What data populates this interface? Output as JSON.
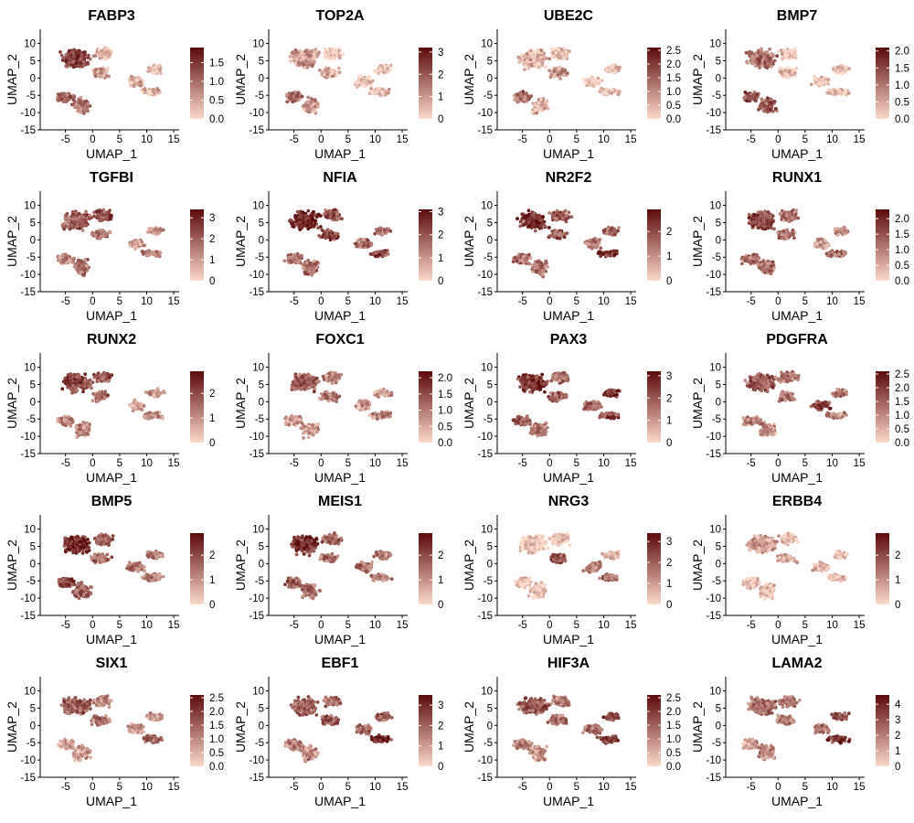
{
  "axes": {
    "xlabel": "UMAP_1",
    "ylabel": "UMAP_2",
    "xticks": [
      -5,
      0,
      5,
      10,
      15
    ],
    "yticks": [
      10,
      5,
      0,
      -5,
      -10,
      -15
    ],
    "xlim": [
      -9,
      16
    ],
    "ylim": [
      -15,
      12
    ]
  },
  "colors": {
    "low": "#fcd9c8",
    "high": "#5b0a0a",
    "background": "#ffffff",
    "axis": "#000000"
  },
  "chart_data": [
    {
      "type": "scatter",
      "title": "FABP3",
      "legend_ticks": [
        "0.0",
        "0.5",
        "1.0",
        "1.5"
      ],
      "colorbar_range": [
        0,
        1.9
      ]
    },
    {
      "type": "scatter",
      "title": "TOP2A",
      "legend_ticks": [
        "0",
        "1",
        "2",
        "3"
      ],
      "colorbar_range": [
        0,
        3.2
      ]
    },
    {
      "type": "scatter",
      "title": "UBE2C",
      "legend_ticks": [
        "0.0",
        "0.5",
        "1.0",
        "1.5",
        "2.0",
        "2.5"
      ],
      "colorbar_range": [
        0,
        2.6
      ]
    },
    {
      "type": "scatter",
      "title": "BMP7",
      "legend_ticks": [
        "0.0",
        "0.5",
        "1.0",
        "1.5",
        "2.0"
      ],
      "colorbar_range": [
        0,
        2.1
      ]
    },
    {
      "type": "scatter",
      "title": "TGFBI",
      "legend_ticks": [
        "0",
        "1",
        "2",
        "3"
      ],
      "colorbar_range": [
        0,
        3.4
      ]
    },
    {
      "type": "scatter",
      "title": "NFIA",
      "legend_ticks": [
        "0",
        "1",
        "2",
        "3"
      ],
      "colorbar_range": [
        0,
        3.1
      ]
    },
    {
      "type": "scatter",
      "title": "NR2F2",
      "legend_ticks": [
        "0",
        "1",
        "2"
      ],
      "colorbar_range": [
        0,
        2.9
      ]
    },
    {
      "type": "scatter",
      "title": "RUNX1",
      "legend_ticks": [
        "0.0",
        "0.5",
        "1.0",
        "1.5",
        "2.0"
      ],
      "colorbar_range": [
        0,
        2.3
      ]
    },
    {
      "type": "scatter",
      "title": "RUNX2",
      "legend_ticks": [
        "0",
        "1",
        "2"
      ],
      "colorbar_range": [
        0,
        2.9
      ]
    },
    {
      "type": "scatter",
      "title": "FOXC1",
      "legend_ticks": [
        "0.0",
        "0.5",
        "1.0",
        "1.5",
        "2.0"
      ],
      "colorbar_range": [
        0,
        2.2
      ]
    },
    {
      "type": "scatter",
      "title": "PAX3",
      "legend_ticks": [
        "0",
        "1",
        "2",
        "3"
      ],
      "colorbar_range": [
        0,
        3.2
      ]
    },
    {
      "type": "scatter",
      "title": "PDGFRA",
      "legend_ticks": [
        "0.0",
        "0.5",
        "1.0",
        "1.5",
        "2.0",
        "2.5"
      ],
      "colorbar_range": [
        0,
        2.6
      ]
    },
    {
      "type": "scatter",
      "title": "BMP5",
      "legend_ticks": [
        "0",
        "1",
        "2"
      ],
      "colorbar_range": [
        0,
        2.9
      ]
    },
    {
      "type": "scatter",
      "title": "MEIS1",
      "legend_ticks": [
        "0",
        "1",
        "2"
      ],
      "colorbar_range": [
        0,
        2.9
      ]
    },
    {
      "type": "scatter",
      "title": "NRG3",
      "legend_ticks": [
        "0",
        "1",
        "2",
        "3"
      ],
      "colorbar_range": [
        0,
        3.4
      ]
    },
    {
      "type": "scatter",
      "title": "ERBB4",
      "legend_ticks": [
        "0",
        "1",
        "2"
      ],
      "colorbar_range": [
        0,
        2.9
      ]
    },
    {
      "type": "scatter",
      "title": "SIX1",
      "legend_ticks": [
        "0.0",
        "0.5",
        "1.0",
        "1.5",
        "2.0",
        "2.5"
      ],
      "colorbar_range": [
        0,
        2.6
      ]
    },
    {
      "type": "scatter",
      "title": "EBF1",
      "legend_ticks": [
        "0",
        "1",
        "2",
        "3"
      ],
      "colorbar_range": [
        0,
        3.5
      ]
    },
    {
      "type": "scatter",
      "title": "HIF3A",
      "legend_ticks": [
        "0.0",
        "0.5",
        "1.0",
        "1.5",
        "2.0",
        "2.5"
      ],
      "colorbar_range": [
        0,
        2.6
      ]
    },
    {
      "type": "scatter",
      "title": "LAMA2",
      "legend_ticks": [
        "0",
        "1",
        "2",
        "3",
        "4"
      ],
      "colorbar_range": [
        0,
        4.6
      ]
    }
  ]
}
